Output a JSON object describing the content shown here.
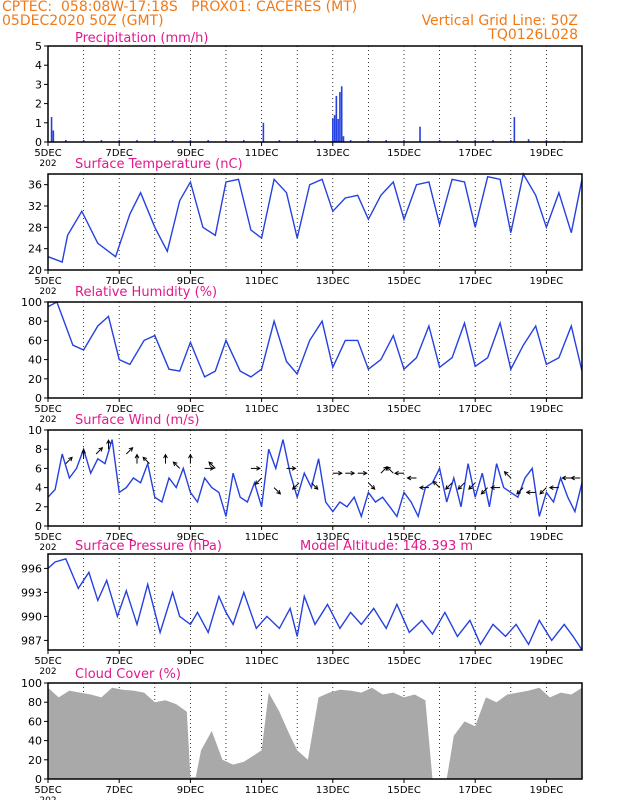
{
  "header": {
    "line1": "CPTEC:  058:08W-17:18S   PROX01: CACERES (MT)",
    "line2_left": "05DEC2020 50Z (GMT)",
    "line2_right": "Vertical Grid Line: 50Z",
    "line3_right": "TQ0126L028"
  },
  "colors": {
    "header": "#f07a18",
    "title": "#e0198c",
    "line": "#2541e0",
    "cloud": "#a9a9a9",
    "grid": "#000000"
  },
  "x_axis": {
    "start": "05DEC2020 00Z",
    "end": "20DEC2020 00Z",
    "tick_labels": [
      "5DEC",
      "7DEC",
      "9DEC",
      "11DEC",
      "13DEC",
      "15DEC",
      "17DEC",
      "19DEC"
    ],
    "tick_days": [
      5,
      7,
      9,
      11,
      13,
      15,
      17,
      19
    ],
    "year_fragment": "202"
  },
  "chart_data": [
    {
      "type": "bar",
      "title": "Precipitation (mm/h)",
      "ylim": [
        0,
        5
      ],
      "yticks": [
        0,
        1,
        2,
        3,
        4,
        5
      ],
      "grid": "vertical dotted daily",
      "x": [
        5.1,
        5.15,
        5.5,
        6.0,
        6.5,
        7.0,
        7.5,
        8.0,
        8.5,
        9.0,
        9.5,
        10.0,
        10.5,
        11.05,
        11.5,
        12.0,
        12.5,
        13.0,
        13.05,
        13.1,
        13.15,
        13.2,
        13.25,
        13.3,
        13.5,
        14.0,
        14.5,
        15.0,
        15.45,
        16.0,
        16.5,
        17.0,
        17.5,
        18.0,
        18.1,
        18.5,
        19.0,
        19.5
      ],
      "values": [
        1.3,
        0.6,
        0.1,
        0.1,
        0.1,
        0.1,
        0.1,
        0.1,
        0.1,
        0.1,
        0.1,
        0.1,
        0.1,
        1.0,
        0.1,
        0.1,
        0.1,
        1.2,
        1.4,
        2.4,
        1.2,
        2.6,
        2.9,
        0.3,
        0.1,
        0.1,
        0.1,
        0.1,
        0.8,
        0.1,
        0.1,
        0.1,
        0.1,
        0.1,
        1.3,
        0.15,
        0.1,
        0.05
      ]
    },
    {
      "type": "line",
      "title": "Surface Temperature (nC)",
      "ylim": [
        20,
        38
      ],
      "yticks": [
        20,
        24,
        28,
        32,
        36
      ],
      "grid": "vertical dotted daily",
      "x": [
        5.0,
        5.4,
        5.55,
        5.95,
        6.4,
        6.9,
        7.3,
        7.6,
        8.0,
        8.35,
        8.7,
        9.0,
        9.35,
        9.7,
        10.0,
        10.35,
        10.7,
        11.0,
        11.35,
        11.7,
        12.0,
        12.35,
        12.7,
        13.0,
        13.35,
        13.7,
        14.0,
        14.35,
        14.7,
        15.0,
        15.35,
        15.7,
        16.0,
        16.35,
        16.7,
        17.0,
        17.35,
        17.7,
        18.0,
        18.35,
        18.7,
        19.0,
        19.35,
        19.7,
        20.0
      ],
      "values": [
        22.5,
        21.5,
        26.5,
        31.0,
        25.0,
        22.5,
        30.5,
        34.5,
        28.0,
        23.5,
        33.0,
        36.5,
        28.0,
        26.5,
        36.5,
        37.0,
        27.5,
        26.0,
        37.0,
        34.5,
        26.0,
        36.0,
        37.0,
        31.0,
        33.5,
        34.0,
        29.5,
        34.0,
        36.5,
        29.5,
        36.0,
        36.5,
        28.5,
        37.0,
        36.5,
        28.0,
        37.5,
        37.0,
        27.0,
        38.0,
        34.0,
        28.0,
        34.5,
        27.0,
        37.0
      ]
    },
    {
      "type": "line",
      "title": "Relative Humidity (%)",
      "ylim": [
        0,
        100
      ],
      "yticks": [
        0,
        20,
        40,
        60,
        80,
        100
      ],
      "grid": "vertical dotted daily",
      "x": [
        5.0,
        5.25,
        5.7,
        6.0,
        6.4,
        6.7,
        7.0,
        7.3,
        7.7,
        8.0,
        8.4,
        8.7,
        9.0,
        9.4,
        9.7,
        10.0,
        10.4,
        10.7,
        11.0,
        11.35,
        11.7,
        12.0,
        12.35,
        12.7,
        13.0,
        13.35,
        13.7,
        14.0,
        14.35,
        14.7,
        15.0,
        15.35,
        15.7,
        16.0,
        16.35,
        16.7,
        17.0,
        17.35,
        17.7,
        18.0,
        18.35,
        18.7,
        19.0,
        19.35,
        19.7,
        20.0
      ],
      "values": [
        95,
        100,
        55,
        50,
        75,
        85,
        40,
        35,
        60,
        65,
        30,
        28,
        58,
        22,
        28,
        60,
        28,
        22,
        30,
        80,
        38,
        25,
        60,
        80,
        32,
        60,
        60,
        30,
        40,
        65,
        30,
        42,
        75,
        32,
        42,
        78,
        33,
        42,
        78,
        30,
        55,
        75,
        35,
        42,
        75,
        28
      ]
    },
    {
      "type": "line",
      "title": "Surface Wind (m/s)",
      "ylim": [
        0,
        10
      ],
      "yticks": [
        0,
        2,
        4,
        6,
        8,
        10
      ],
      "grid": "vertical dotted daily",
      "x": [
        5.0,
        5.2,
        5.4,
        5.6,
        5.8,
        6.0,
        6.2,
        6.4,
        6.6,
        6.8,
        7.0,
        7.2,
        7.4,
        7.6,
        7.8,
        8.0,
        8.2,
        8.4,
        8.6,
        8.8,
        9.0,
        9.2,
        9.4,
        9.6,
        9.8,
        10.0,
        10.2,
        10.4,
        10.6,
        10.8,
        11.0,
        11.2,
        11.4,
        11.6,
        11.8,
        12.0,
        12.2,
        12.4,
        12.6,
        12.8,
        13.0,
        13.2,
        13.4,
        13.6,
        13.8,
        14.0,
        14.2,
        14.4,
        14.6,
        14.8,
        15.0,
        15.2,
        15.4,
        15.6,
        15.8,
        16.0,
        16.2,
        16.4,
        16.6,
        16.8,
        17.0,
        17.2,
        17.4,
        17.6,
        17.8,
        18.0,
        18.2,
        18.4,
        18.6,
        18.8,
        19.0,
        19.2,
        19.4,
        19.6,
        19.8,
        20.0
      ],
      "values": [
        3.0,
        3.8,
        7.5,
        5.0,
        6.0,
        8.0,
        5.5,
        7.0,
        6.5,
        9.0,
        3.5,
        4.0,
        5.0,
        4.5,
        6.5,
        3.0,
        2.5,
        5.0,
        4.0,
        6.0,
        3.5,
        2.5,
        5.0,
        4.0,
        3.5,
        1.0,
        5.5,
        3.0,
        2.5,
        4.5,
        2.0,
        8.0,
        6.0,
        9.0,
        5.5,
        3.0,
        5.5,
        4.0,
        7.0,
        2.5,
        1.5,
        2.5,
        2.0,
        3.0,
        1.0,
        3.5,
        2.5,
        3.0,
        2.0,
        1.0,
        3.5,
        2.5,
        1.0,
        4.0,
        4.5,
        6.0,
        2.5,
        5.0,
        2.0,
        6.5,
        3.0,
        5.5,
        2.0,
        6.5,
        4.0,
        3.5,
        3.0,
        5.0,
        6.0,
        1.0,
        3.5,
        2.5,
        5.0,
        3.0,
        1.5,
        4.5
      ],
      "arrows": [
        {
          "x": 5.5,
          "y": 6.5,
          "dir": "NE"
        },
        {
          "x": 6.0,
          "y": 7.0,
          "dir": "N"
        },
        {
          "x": 6.35,
          "y": 7.5,
          "dir": "NE"
        },
        {
          "x": 6.7,
          "y": 8.0,
          "dir": "N"
        },
        {
          "x": 7.2,
          "y": 7.5,
          "dir": "NE"
        },
        {
          "x": 7.5,
          "y": 6.5,
          "dir": "N"
        },
        {
          "x": 7.85,
          "y": 6.5,
          "dir": "NW"
        },
        {
          "x": 8.3,
          "y": 6.5,
          "dir": "N"
        },
        {
          "x": 8.7,
          "y": 6.0,
          "dir": "NW"
        },
        {
          "x": 9.0,
          "y": 6.5,
          "dir": "N"
        },
        {
          "x": 9.4,
          "y": 6.0,
          "dir": "E"
        },
        {
          "x": 9.7,
          "y": 6.0,
          "dir": "NW"
        },
        {
          "x": 10.7,
          "y": 6.0,
          "dir": "E"
        },
        {
          "x": 11.0,
          "y": 5.0,
          "dir": "SW"
        },
        {
          "x": 11.35,
          "y": 4.0,
          "dir": "SE"
        },
        {
          "x": 11.7,
          "y": 6.0,
          "dir": "E"
        },
        {
          "x": 12.05,
          "y": 4.5,
          "dir": "SW"
        },
        {
          "x": 12.4,
          "y": 4.5,
          "dir": "SE"
        },
        {
          "x": 13.0,
          "y": 5.5,
          "dir": "E"
        },
        {
          "x": 13.35,
          "y": 5.5,
          "dir": "E"
        },
        {
          "x": 13.7,
          "y": 5.5,
          "dir": "E"
        },
        {
          "x": 14.0,
          "y": 4.5,
          "dir": "SE"
        },
        {
          "x": 14.35,
          "y": 5.5,
          "dir": "NE"
        },
        {
          "x": 14.7,
          "y": 5.5,
          "dir": "NW"
        },
        {
          "x": 15.0,
          "y": 5.5,
          "dir": "W"
        },
        {
          "x": 15.35,
          "y": 5.0,
          "dir": "W"
        },
        {
          "x": 15.7,
          "y": 4.0,
          "dir": "W"
        },
        {
          "x": 16.0,
          "y": 4.0,
          "dir": "NW"
        },
        {
          "x": 16.35,
          "y": 4.5,
          "dir": "SW"
        },
        {
          "x": 16.7,
          "y": 4.5,
          "dir": "SW"
        },
        {
          "x": 17.0,
          "y": 4.5,
          "dir": "SW"
        },
        {
          "x": 17.35,
          "y": 4.0,
          "dir": "SW"
        },
        {
          "x": 17.7,
          "y": 4.0,
          "dir": "W"
        },
        {
          "x": 18.0,
          "y": 5.0,
          "dir": "NW"
        },
        {
          "x": 18.35,
          "y": 4.0,
          "dir": "SW"
        },
        {
          "x": 18.7,
          "y": 3.5,
          "dir": "W"
        },
        {
          "x": 19.0,
          "y": 4.0,
          "dir": "SW"
        },
        {
          "x": 19.35,
          "y": 4.0,
          "dir": "W"
        },
        {
          "x": 19.7,
          "y": 5.0,
          "dir": "W"
        },
        {
          "x": 19.95,
          "y": 5.0,
          "dir": "W"
        }
      ]
    },
    {
      "type": "line",
      "title": "Surface Pressure (hPa)",
      "annotation": "Model Altitude: 148.393 m",
      "ylim": [
        985.8,
        997.8
      ],
      "yticks": [
        987,
        990,
        993,
        996
      ],
      "grid": "vertical dotted daily",
      "x": [
        5.0,
        5.2,
        5.5,
        5.85,
        6.15,
        6.4,
        6.65,
        6.95,
        7.2,
        7.5,
        7.8,
        8.15,
        8.5,
        8.7,
        9.0,
        9.2,
        9.5,
        9.8,
        10.0,
        10.2,
        10.5,
        10.85,
        11.15,
        11.5,
        11.8,
        12.0,
        12.2,
        12.5,
        12.85,
        13.2,
        13.5,
        13.8,
        14.15,
        14.5,
        14.8,
        15.15,
        15.5,
        15.8,
        16.15,
        16.5,
        16.85,
        17.15,
        17.5,
        17.85,
        18.15,
        18.5,
        18.8,
        19.15,
        19.5,
        19.75,
        20.0
      ],
      "values": [
        996.0,
        996.8,
        997.2,
        993.5,
        995.5,
        992.0,
        994.5,
        990.0,
        993.2,
        989.0,
        994.0,
        988.0,
        993.0,
        990.0,
        989.0,
        990.5,
        988.0,
        992.5,
        990.5,
        989.0,
        993.0,
        988.5,
        990.0,
        988.5,
        991.0,
        987.5,
        992.5,
        989.0,
        991.5,
        988.5,
        990.5,
        989.0,
        991.0,
        988.5,
        991.5,
        988.0,
        989.5,
        987.8,
        990.5,
        987.5,
        989.5,
        986.5,
        989.0,
        987.5,
        989.0,
        986.5,
        989.5,
        987.0,
        989.0,
        987.5,
        985.8
      ]
    },
    {
      "type": "area",
      "title": "Cloud Cover (%)",
      "ylim": [
        0,
        100
      ],
      "yticks": [
        0,
        20,
        40,
        60,
        80,
        100
      ],
      "grid": "vertical dotted daily",
      "x": [
        5.0,
        5.3,
        5.6,
        5.9,
        6.2,
        6.5,
        6.8,
        7.1,
        7.4,
        7.7,
        8.0,
        8.3,
        8.6,
        8.9,
        9.0,
        9.15,
        9.3,
        9.6,
        9.9,
        10.2,
        10.5,
        10.8,
        11.0,
        11.2,
        11.5,
        11.8,
        12.0,
        12.3,
        12.6,
        12.9,
        13.2,
        13.5,
        13.8,
        14.1,
        14.4,
        14.7,
        15.0,
        15.3,
        15.6,
        15.8,
        16.0,
        16.2,
        16.4,
        16.7,
        17.0,
        17.3,
        17.6,
        17.9,
        18.2,
        18.5,
        18.8,
        19.1,
        19.4,
        19.7,
        20.0
      ],
      "values": [
        95,
        85,
        92,
        90,
        88,
        85,
        95,
        93,
        92,
        90,
        80,
        82,
        78,
        70,
        2,
        2,
        30,
        50,
        20,
        15,
        18,
        25,
        30,
        90,
        70,
        45,
        30,
        20,
        85,
        90,
        93,
        92,
        90,
        95,
        88,
        90,
        85,
        88,
        82,
        0,
        0,
        0,
        45,
        60,
        55,
        85,
        80,
        88,
        90,
        92,
        95,
        85,
        90,
        88,
        95
      ]
    }
  ]
}
